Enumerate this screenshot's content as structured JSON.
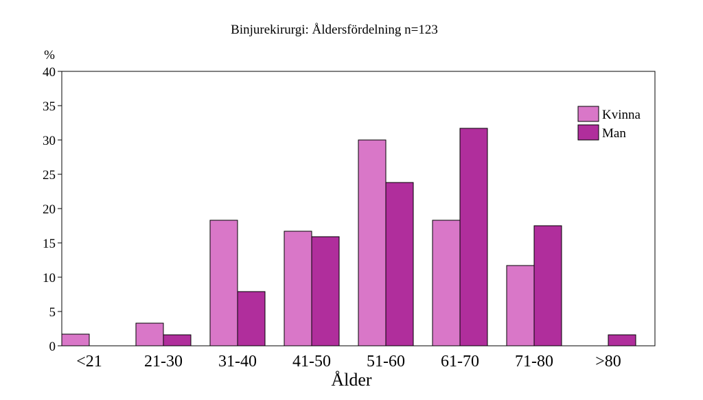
{
  "chart_data": {
    "type": "bar",
    "title": "Binjurekirurgi: Åldersfördelning n=123",
    "xlabel": "Ålder",
    "ylabel": "%",
    "ylim": [
      0,
      40
    ],
    "yticks": [
      0,
      5,
      10,
      15,
      20,
      25,
      30,
      35,
      40
    ],
    "grid": false,
    "legend_position": "top-right",
    "categories": [
      "<21",
      "21-30",
      "31-40",
      "41-50",
      "51-60",
      "61-70",
      "71-80",
      ">80"
    ],
    "series": [
      {
        "name": "Kvinna",
        "color": "#d977c8",
        "values": [
          1.7,
          3.3,
          18.3,
          16.7,
          30.0,
          18.3,
          11.7,
          0
        ]
      },
      {
        "name": "Man",
        "color": "#b02e9c",
        "values": [
          0,
          1.6,
          7.9,
          15.9,
          23.8,
          31.7,
          17.5,
          1.6
        ]
      }
    ]
  }
}
